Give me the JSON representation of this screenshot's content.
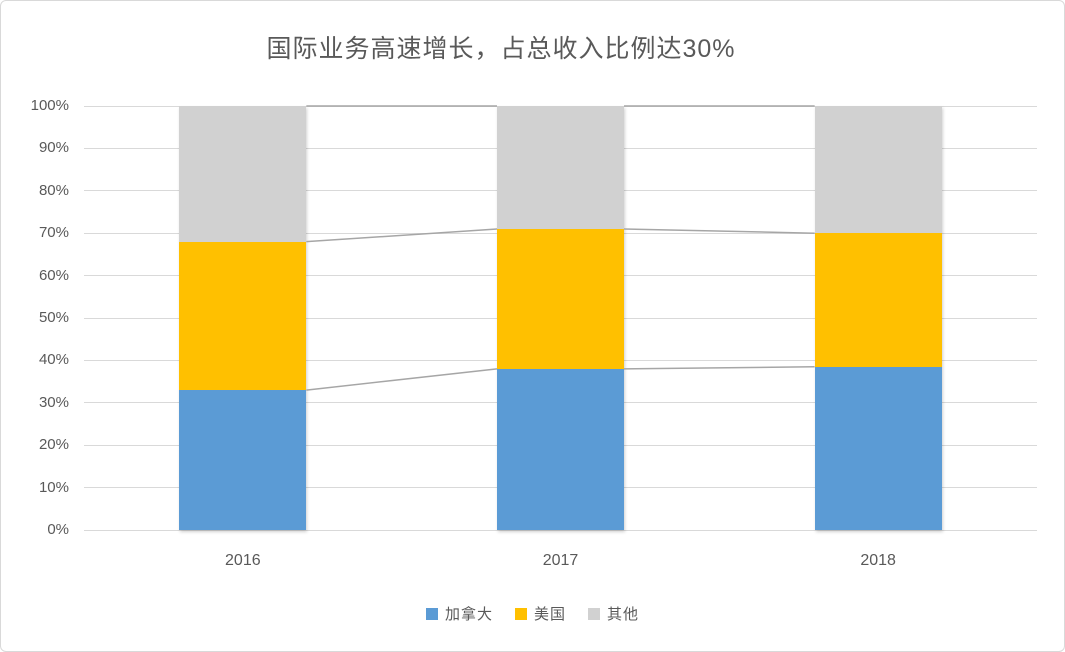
{
  "chart_data": {
    "type": "bar",
    "variant": "100-percent-stacked-column",
    "title": "国际业务高速增长，占总收入比例达30%",
    "categories": [
      "2016",
      "2017",
      "2018"
    ],
    "series": [
      {
        "name": "加拿大",
        "color": "#5b9bd5",
        "values": [
          33,
          38,
          38.5
        ]
      },
      {
        "name": "美国",
        "color": "#ffc000",
        "values": [
          35,
          33,
          31.5
        ]
      },
      {
        "name": "其他",
        "color": "#d1d1d1",
        "values": [
          32,
          29,
          30
        ]
      }
    ],
    "xlabel": "",
    "ylabel": "",
    "ylim": [
      0,
      100
    ],
    "y_ticks": [
      "0%",
      "10%",
      "20%",
      "30%",
      "40%",
      "50%",
      "60%",
      "70%",
      "80%",
      "90%",
      "100%"
    ],
    "grid": true,
    "legend_position": "bottom",
    "series_connector_lines": true,
    "colors": {
      "gridline": "#d9d9d9",
      "connector_line": "#a6a6a6",
      "text": "#595959",
      "card_border": "#d9d9d9",
      "background": "#ffffff"
    }
  }
}
